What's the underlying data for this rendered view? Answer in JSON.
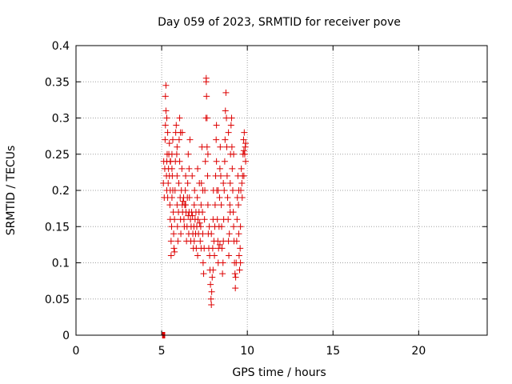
{
  "chart_data": {
    "type": "scatter",
    "title": "Day 059 of 2023, SRMTID for receiver pove",
    "xlabel": "GPS time / hours",
    "ylabel": "SRMTID / TECUs",
    "xlim": [
      0,
      24
    ],
    "ylim": [
      0,
      0.4
    ],
    "xticks": [
      0,
      5,
      10,
      15,
      20
    ],
    "yticks": [
      0,
      0.05,
      0.1,
      0.15,
      0.2,
      0.25,
      0.3,
      0.35,
      0.4
    ],
    "xtick_labels": [
      "0",
      "5",
      "10",
      "15",
      "20"
    ],
    "ytick_labels": [
      "0",
      "0.05",
      "0.1",
      "0.15",
      "0.2",
      "0.25",
      "0.3",
      "0.35",
      "0.4"
    ],
    "grid": true,
    "marker": "+",
    "color": "#dd0000",
    "series": [
      {
        "points": [
          [
            5.05,
            0.0
          ],
          [
            5.08,
            0.0
          ],
          [
            5.1,
            0.0
          ],
          [
            5.12,
            0.0
          ],
          [
            5.15,
            0.0
          ],
          [
            5.18,
            0.0
          ],
          [
            5.1,
            0.21
          ],
          [
            5.12,
            0.24
          ],
          [
            5.15,
            0.19
          ],
          [
            5.18,
            0.23
          ],
          [
            5.2,
            0.27
          ],
          [
            5.22,
            0.29
          ],
          [
            5.22,
            0.33
          ],
          [
            5.25,
            0.345
          ],
          [
            5.25,
            0.31
          ],
          [
            5.28,
            0.22
          ],
          [
            5.3,
            0.24
          ],
          [
            5.3,
            0.2
          ],
          [
            5.32,
            0.25
          ],
          [
            5.35,
            0.28
          ],
          [
            5.35,
            0.19
          ],
          [
            5.38,
            0.21
          ],
          [
            5.4,
            0.23
          ],
          [
            5.42,
            0.25
          ],
          [
            5.45,
            0.22
          ],
          [
            5.45,
            0.265
          ],
          [
            5.48,
            0.18
          ],
          [
            5.5,
            0.16
          ],
          [
            5.5,
            0.2
          ],
          [
            5.52,
            0.24
          ],
          [
            5.55,
            0.11
          ],
          [
            5.55,
            0.13
          ],
          [
            5.58,
            0.15
          ],
          [
            5.6,
            0.19
          ],
          [
            5.6,
            0.25
          ],
          [
            5.62,
            0.22
          ],
          [
            5.65,
            0.27
          ],
          [
            5.65,
            0.2
          ],
          [
            5.68,
            0.17
          ],
          [
            5.7,
            0.14
          ],
          [
            5.72,
            0.12
          ],
          [
            5.75,
            0.115
          ],
          [
            5.75,
            0.16
          ],
          [
            5.78,
            0.2
          ],
          [
            5.8,
            0.24
          ],
          [
            5.82,
            0.28
          ],
          [
            5.85,
            0.29
          ],
          [
            5.88,
            0.25
          ],
          [
            5.9,
            0.22
          ],
          [
            5.9,
            0.18
          ],
          [
            5.92,
            0.15
          ],
          [
            5.95,
            0.13
          ],
          [
            5.98,
            0.17
          ],
          [
            6.0,
            0.21
          ],
          [
            6.02,
            0.27
          ],
          [
            6.05,
            0.3
          ],
          [
            6.05,
            0.24
          ],
          [
            6.08,
            0.19
          ],
          [
            6.1,
            0.16
          ],
          [
            6.12,
            0.14
          ],
          [
            6.15,
            0.2
          ],
          [
            6.18,
            0.23
          ],
          [
            6.2,
            0.28
          ],
          [
            6.2,
            0.18
          ],
          [
            6.22,
            0.17
          ],
          [
            6.25,
            0.185
          ],
          [
            6.28,
            0.19
          ],
          [
            6.3,
            0.16
          ],
          [
            6.32,
            0.15
          ],
          [
            6.35,
            0.18
          ],
          [
            6.38,
            0.2
          ],
          [
            6.4,
            0.22
          ],
          [
            6.42,
            0.17
          ],
          [
            6.45,
            0.13
          ],
          [
            6.48,
            0.15
          ],
          [
            6.5,
            0.19
          ],
          [
            6.52,
            0.21
          ],
          [
            6.55,
            0.25
          ],
          [
            6.55,
            0.165
          ],
          [
            6.58,
            0.14
          ],
          [
            6.6,
            0.17
          ],
          [
            6.62,
            0.19
          ],
          [
            6.65,
            0.27
          ],
          [
            6.68,
            0.16
          ],
          [
            6.7,
            0.13
          ],
          [
            6.72,
            0.15
          ],
          [
            6.75,
            0.17
          ],
          [
            6.78,
            0.22
          ],
          [
            6.8,
            0.165
          ],
          [
            6.82,
            0.14
          ],
          [
            6.85,
            0.12
          ],
          [
            6.88,
            0.15
          ],
          [
            6.9,
            0.18
          ],
          [
            6.92,
            0.2
          ],
          [
            6.95,
            0.16
          ],
          [
            6.98,
            0.14
          ],
          [
            7.0,
            0.17
          ],
          [
            7.02,
            0.12
          ],
          [
            7.05,
            0.15
          ],
          [
            7.08,
            0.19
          ],
          [
            7.1,
            0.23
          ],
          [
            7.12,
            0.16
          ],
          [
            7.15,
            0.14
          ],
          [
            7.18,
            0.17
          ],
          [
            7.2,
            0.21
          ],
          [
            7.22,
            0.155
          ],
          [
            7.25,
            0.13
          ],
          [
            7.28,
            0.15
          ],
          [
            7.3,
            0.18
          ],
          [
            7.32,
            0.21
          ],
          [
            7.35,
            0.26
          ],
          [
            7.38,
            0.17
          ],
          [
            7.4,
            0.14
          ],
          [
            7.42,
            0.1
          ],
          [
            7.45,
            0.085
          ],
          [
            7.48,
            0.12
          ],
          [
            7.5,
            0.16
          ],
          [
            7.52,
            0.2
          ],
          [
            7.55,
            0.24
          ],
          [
            7.58,
            0.3
          ],
          [
            7.6,
            0.35
          ],
          [
            7.6,
            0.355
          ],
          [
            7.62,
            0.33
          ],
          [
            7.65,
            0.3
          ],
          [
            7.65,
            0.26
          ],
          [
            7.68,
            0.22
          ],
          [
            7.7,
            0.18
          ],
          [
            7.72,
            0.14
          ],
          [
            7.75,
            0.12
          ],
          [
            7.78,
            0.15
          ],
          [
            7.8,
            0.11
          ],
          [
            7.82,
            0.09
          ],
          [
            7.85,
            0.07
          ],
          [
            7.88,
            0.05
          ],
          [
            7.9,
            0.042
          ],
          [
            7.92,
            0.06
          ],
          [
            7.95,
            0.08
          ],
          [
            7.98,
            0.12
          ],
          [
            8.0,
            0.16
          ],
          [
            8.02,
            0.2
          ],
          [
            8.05,
            0.13
          ],
          [
            8.08,
            0.11
          ],
          [
            8.1,
            0.15
          ],
          [
            8.12,
            0.18
          ],
          [
            8.15,
            0.22
          ],
          [
            8.18,
            0.27
          ],
          [
            8.2,
            0.29
          ],
          [
            8.2,
            0.24
          ],
          [
            8.22,
            0.2
          ],
          [
            8.25,
            0.16
          ],
          [
            8.28,
            0.13
          ],
          [
            8.3,
            0.1
          ],
          [
            8.32,
            0.12
          ],
          [
            8.35,
            0.15
          ],
          [
            8.38,
            0.19
          ],
          [
            8.4,
            0.23
          ],
          [
            8.42,
            0.26
          ],
          [
            8.45,
            0.22
          ],
          [
            8.48,
            0.18
          ],
          [
            8.5,
            0.15
          ],
          [
            8.52,
            0.12
          ],
          [
            8.55,
            0.085
          ],
          [
            8.58,
            0.1
          ],
          [
            8.6,
            0.13
          ],
          [
            8.62,
            0.16
          ],
          [
            8.65,
            0.2
          ],
          [
            8.68,
            0.24
          ],
          [
            8.7,
            0.27
          ],
          [
            8.72,
            0.31
          ],
          [
            8.75,
            0.335
          ],
          [
            8.78,
            0.3
          ],
          [
            8.8,
            0.26
          ],
          [
            8.82,
            0.22
          ],
          [
            8.85,
            0.19
          ],
          [
            8.88,
            0.16
          ],
          [
            8.9,
            0.13
          ],
          [
            8.92,
            0.11
          ],
          [
            8.95,
            0.14
          ],
          [
            8.98,
            0.18
          ],
          [
            9.0,
            0.21
          ],
          [
            9.02,
            0.25
          ],
          [
            9.05,
            0.29
          ],
          [
            9.08,
            0.3
          ],
          [
            9.1,
            0.26
          ],
          [
            9.12,
            0.23
          ],
          [
            9.15,
            0.2
          ],
          [
            9.18,
            0.17
          ],
          [
            9.2,
            0.15
          ],
          [
            9.22,
            0.13
          ],
          [
            9.25,
            0.1
          ],
          [
            9.28,
            0.085
          ],
          [
            9.3,
            0.065
          ],
          [
            9.32,
            0.08
          ],
          [
            9.35,
            0.1
          ],
          [
            9.38,
            0.13
          ],
          [
            9.4,
            0.16
          ],
          [
            9.42,
            0.19
          ],
          [
            9.45,
            0.22
          ],
          [
            9.48,
            0.18
          ],
          [
            9.5,
            0.14
          ],
          [
            9.52,
            0.11
          ],
          [
            9.55,
            0.09
          ],
          [
            9.58,
            0.12
          ],
          [
            9.6,
            0.15
          ],
          [
            9.62,
            0.2
          ],
          [
            9.65,
            0.23
          ],
          [
            9.68,
            0.21
          ],
          [
            9.7,
            0.19
          ],
          [
            9.72,
            0.22
          ],
          [
            9.75,
            0.25
          ],
          [
            9.78,
            0.27
          ],
          [
            9.8,
            0.255
          ],
          [
            9.82,
            0.28
          ],
          [
            9.85,
            0.25
          ],
          [
            9.88,
            0.26
          ],
          [
            9.9,
            0.24
          ],
          [
            5.3,
            0.3
          ],
          [
            5.6,
            0.23
          ],
          [
            5.9,
            0.26
          ],
          [
            6.1,
            0.28
          ],
          [
            6.4,
            0.18
          ],
          [
            6.9,
            0.13
          ],
          [
            7.1,
            0.11
          ],
          [
            7.4,
            0.2
          ],
          [
            7.7,
            0.25
          ],
          [
            8.0,
            0.09
          ],
          [
            8.3,
            0.2
          ],
          [
            8.6,
            0.21
          ],
          [
            8.9,
            0.28
          ],
          [
            9.2,
            0.25
          ],
          [
            9.5,
            0.2
          ],
          [
            9.8,
            0.22
          ],
          [
            5.5,
            0.24
          ],
          [
            6.6,
            0.23
          ],
          [
            7.3,
            0.12
          ],
          [
            7.9,
            0.14
          ],
          [
            8.4,
            0.125
          ],
          [
            9.0,
            0.17
          ],
          [
            9.6,
            0.1
          ],
          [
            9.9,
            0.265
          ]
        ]
      }
    ]
  }
}
